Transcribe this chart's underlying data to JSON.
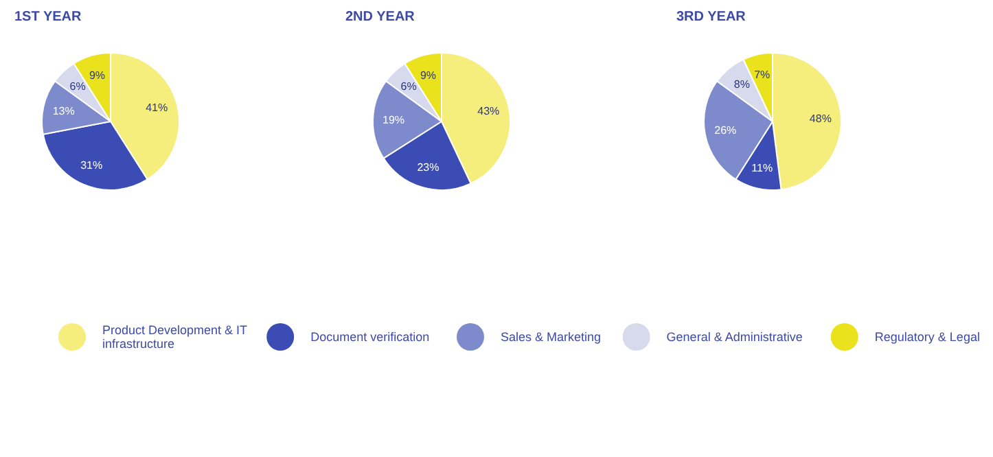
{
  "chart_data": [
    {
      "type": "pie",
      "title": "1ST YEAR",
      "categories": [
        "Product Development & IT infrastructure",
        "Document verification",
        "Sales & Marketing",
        "General & Administrative",
        "Regulatory & Legal"
      ],
      "values": [
        41,
        31,
        13,
        6,
        9
      ],
      "value_labels": [
        "41%",
        "31%",
        "13%",
        "6%",
        "9%"
      ],
      "colors": [
        "#f6ee7c",
        "#3b4db5",
        "#7d8acb",
        "#d7daec",
        "#e9e21c"
      ],
      "legend": "bottom"
    },
    {
      "type": "pie",
      "title": "2ND YEAR",
      "categories": [
        null,
        null,
        null,
        null,
        null
      ],
      "values": [
        43,
        23,
        19,
        6,
        9
      ],
      "value_labels": [
        "43%",
        "23%",
        "19%",
        "6%",
        "9%"
      ],
      "colors": [
        "#f6ee7c",
        "#3b4db5",
        "#7d8acb",
        "#d7daec",
        "#e9e21c"
      ]
    },
    {
      "type": "pie",
      "title": "3RD YEAR",
      "categories": [
        null,
        null,
        null,
        null,
        null
      ],
      "values": [
        48,
        11,
        26,
        8,
        7
      ],
      "value_labels": [
        "48%",
        "11%",
        "26%",
        "8%",
        "7%"
      ],
      "colors": [
        "#f6ee7c",
        "#3b4db5",
        "#7d8acb",
        "#d7daec",
        "#e9e21c"
      ]
    }
  ]
}
